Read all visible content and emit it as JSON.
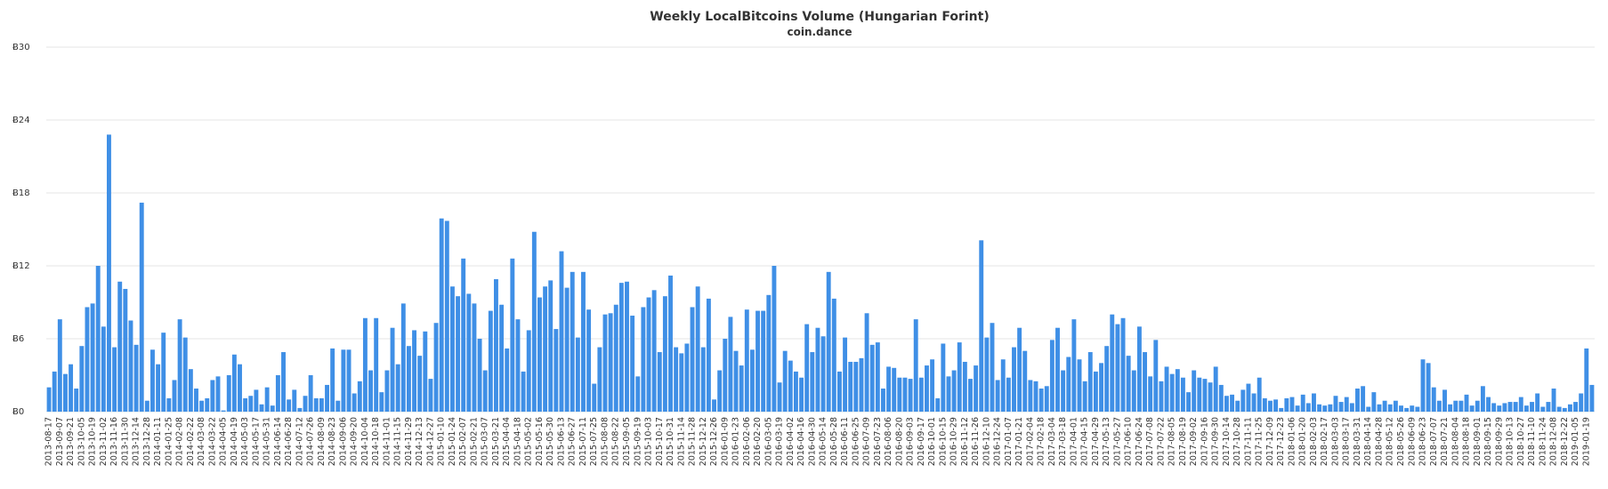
{
  "chart_data": {
    "type": "bar",
    "title": "Weekly LocalBitcoins Volume (Hungarian Forint)",
    "subtitle": "coin.dance",
    "color": "#3f8fe6",
    "grid": true,
    "ylim": [
      0,
      30
    ],
    "yticks": [
      {
        "value": 0,
        "label": "Ƀ0"
      },
      {
        "value": 6,
        "label": "Ƀ6"
      },
      {
        "value": 12,
        "label": "Ƀ12"
      },
      {
        "value": 18,
        "label": "Ƀ18"
      },
      {
        "value": 24,
        "label": "Ƀ24"
      },
      {
        "value": 30,
        "label": "Ƀ30"
      }
    ],
    "categories": [
      "2013-08-17",
      null,
      "2013-09-07",
      null,
      "2013-09-21",
      null,
      "2013-10-05",
      null,
      "2013-10-19",
      null,
      "2013-11-02",
      null,
      "2013-11-16",
      null,
      "2013-11-30",
      null,
      "2013-12-14",
      null,
      "2013-12-28",
      null,
      "2014-01-11",
      null,
      "2014-01-25",
      null,
      "2014-02-08",
      null,
      "2014-02-22",
      null,
      "2014-03-08",
      null,
      "2014-03-22",
      null,
      "2014-04-05",
      null,
      "2014-04-19",
      null,
      "2014-05-03",
      null,
      "2014-05-17",
      null,
      "2014-05-31",
      null,
      "2014-06-14",
      null,
      "2014-06-28",
      null,
      "2014-07-12",
      null,
      "2014-07-26",
      null,
      "2014-08-09",
      null,
      "2014-08-23",
      null,
      "2014-09-06",
      null,
      "2014-09-20",
      null,
      "2014-10-04",
      null,
      "2014-10-18",
      null,
      "2014-11-01",
      null,
      "2014-11-15",
      null,
      "2014-11-29",
      null,
      "2014-12-13",
      null,
      "2014-12-27",
      null,
      "2015-01-10",
      null,
      "2015-01-24",
      null,
      "2015-02-07",
      null,
      "2015-02-21",
      null,
      "2015-03-07",
      null,
      "2015-03-21",
      null,
      "2015-04-04",
      null,
      "2015-04-18",
      null,
      "2015-05-02",
      null,
      "2015-05-16",
      null,
      "2015-05-30",
      null,
      "2015-06-13",
      null,
      "2015-06-27",
      null,
      "2015-07-11",
      null,
      "2015-07-25",
      null,
      "2015-08-08",
      null,
      "2015-08-22",
      null,
      "2015-09-05",
      null,
      "2015-09-19",
      null,
      "2015-10-03",
      null,
      "2015-10-17",
      null,
      "2015-10-31",
      null,
      "2015-11-14",
      null,
      "2015-11-28",
      null,
      "2015-12-12",
      null,
      "2015-12-26",
      null,
      "2016-01-09",
      null,
      "2016-01-23",
      null,
      "2016-02-06",
      null,
      "2016-02-20",
      null,
      "2016-03-05",
      null,
      "2016-03-19",
      null,
      "2016-04-02",
      null,
      "2016-04-16",
      null,
      "2016-04-30",
      null,
      "2016-05-14",
      null,
      "2016-05-28",
      null,
      "2016-06-11",
      null,
      "2016-06-25",
      null,
      "2016-07-09",
      null,
      "2016-07-23",
      null,
      "2016-08-06",
      null,
      "2016-08-20",
      null,
      "2016-09-03",
      null,
      "2016-09-17",
      null,
      "2016-10-01",
      null,
      "2016-10-15",
      null,
      "2016-10-29",
      null,
      "2016-11-12",
      null,
      "2016-11-26",
      null,
      "2016-12-10",
      null,
      "2016-12-24",
      null,
      "2017-01-07",
      null,
      "2017-01-21",
      null,
      "2017-02-04",
      null,
      "2017-02-18",
      null,
      "2017-03-04",
      null,
      "2017-03-18",
      null,
      "2017-04-01",
      null,
      "2017-04-15",
      null,
      "2017-04-29",
      null,
      "2017-05-13",
      null,
      "2017-05-27",
      null,
      "2017-06-10",
      null,
      "2017-06-24",
      null,
      "2017-07-08",
      null,
      "2017-07-22",
      null,
      "2017-08-05",
      null,
      "2017-08-19",
      null,
      "2017-09-02",
      null,
      "2017-09-16",
      null,
      "2017-09-30",
      null,
      "2017-10-14",
      null,
      "2017-10-28",
      null,
      "2017-11-11",
      null,
      "2017-11-25",
      null,
      "2017-12-09",
      null,
      "2017-12-23",
      null,
      "2018-01-06",
      null,
      "2018-01-20",
      null,
      "2018-02-03",
      null,
      "2018-02-17",
      null,
      "2018-03-03",
      null,
      "2018-03-17",
      null,
      "2018-03-31",
      null,
      "2018-04-14",
      null,
      "2018-04-28",
      null,
      "2018-05-12",
      null,
      "2018-05-26",
      null,
      "2018-06-09",
      null,
      "2018-06-23",
      null,
      "2018-07-07",
      null,
      "2018-07-21",
      null,
      "2018-08-04",
      null,
      "2018-08-18",
      null,
      "2018-09-01",
      null,
      "2018-09-15",
      null,
      "2018-09-29",
      null,
      "2018-10-13",
      null,
      "2018-10-27",
      null,
      "2018-11-10",
      null,
      "2018-11-24",
      null,
      "2018-12-08",
      null,
      "2018-12-22",
      null,
      "2019-01-05",
      null,
      "2019-01-19",
      null
    ],
    "values": [
      2.0,
      3.3,
      7.6,
      3.1,
      3.9,
      1.9,
      5.4,
      8.6,
      8.9,
      12.0,
      7.0,
      22.8,
      5.3,
      10.7,
      10.1,
      7.5,
      5.5,
      17.2,
      0.9,
      5.1,
      3.9,
      6.5,
      1.1,
      2.6,
      7.6,
      6.1,
      3.5,
      1.9,
      0.9,
      1.1,
      2.6,
      2.9,
      0.1,
      3.0,
      4.7,
      3.9,
      1.1,
      1.3,
      1.8,
      0.6,
      2.0,
      0.5,
      3.0,
      4.9,
      1.0,
      1.8,
      0.3,
      1.3,
      3.0,
      1.1,
      1.1,
      2.2,
      5.2,
      0.9,
      5.1,
      5.1,
      1.5,
      2.5,
      7.7,
      3.4,
      7.7,
      1.6,
      3.4,
      6.9,
      3.9,
      8.9,
      5.4,
      6.7,
      4.6,
      6.6,
      2.7,
      7.3,
      15.9,
      15.7,
      10.3,
      9.5,
      12.6,
      9.7,
      8.9,
      6.0,
      3.4,
      8.3,
      10.9,
      8.8,
      5.2,
      12.6,
      7.6,
      3.3,
      6.7,
      14.8,
      9.4,
      10.3,
      10.8,
      6.8,
      13.2,
      10.2,
      11.5,
      6.1,
      11.5,
      8.4,
      2.3,
      5.3,
      8.0,
      8.1,
      8.8,
      10.6,
      10.7,
      7.9,
      2.9,
      8.6,
      9.4,
      10.0,
      4.9,
      9.5,
      11.2,
      5.3,
      4.8,
      5.6,
      8.6,
      10.3,
      5.3,
      9.3,
      1.0,
      3.4,
      6.0,
      7.8,
      5.0,
      3.8,
      8.4,
      5.1,
      8.3,
      8.3,
      9.6,
      12.0,
      2.4,
      5.0,
      4.2,
      3.3,
      2.8,
      7.2,
      4.9,
      6.9,
      6.2,
      11.5,
      9.3,
      3.3,
      6.1,
      4.1,
      4.1,
      4.4,
      8.1,
      5.5,
      5.7,
      1.9,
      3.7,
      3.6,
      2.8,
      2.8,
      2.7,
      7.6,
      2.8,
      3.8,
      4.3,
      1.1,
      5.6,
      2.9,
      3.4,
      5.7,
      4.1,
      2.7,
      3.8,
      14.1,
      6.1,
      7.3,
      2.6,
      4.3,
      2.8,
      5.3,
      6.9,
      5.0,
      2.6,
      2.5,
      1.9,
      2.1,
      5.9,
      6.9,
      3.4,
      4.5,
      7.6,
      4.3,
      2.5,
      4.9,
      3.3,
      4.0,
      5.4,
      8.0,
      7.2,
      7.7,
      4.6,
      3.4,
      7.0,
      4.9,
      2.9,
      5.9,
      2.5,
      3.7,
      3.1,
      3.5,
      2.8,
      1.6,
      3.4,
      2.8,
      2.7,
      2.4,
      3.7,
      2.2,
      1.3,
      1.4,
      0.9,
      1.8,
      2.3,
      1.5,
      2.8,
      1.1,
      0.9,
      1.0,
      0.3,
      1.1,
      1.2,
      0.5,
      1.4,
      0.7,
      1.5,
      0.6,
      0.5,
      0.6,
      1.3,
      0.8,
      1.2,
      0.7,
      1.9,
      2.1,
      0.4,
      1.6,
      0.6,
      0.9,
      0.6,
      0.9,
      0.5,
      0.3,
      0.5,
      0.4,
      4.3,
      4.0,
      2.0,
      0.9,
      1.8,
      0.6,
      0.9,
      0.9,
      1.4,
      0.5,
      0.9,
      2.1,
      1.2,
      0.7,
      0.5,
      0.7,
      0.8,
      0.8,
      1.2,
      0.5,
      0.8,
      1.5,
      0.4,
      0.8,
      1.9,
      0.4,
      0.3,
      0.6,
      0.8,
      1.5,
      5.2,
      2.2
    ]
  }
}
